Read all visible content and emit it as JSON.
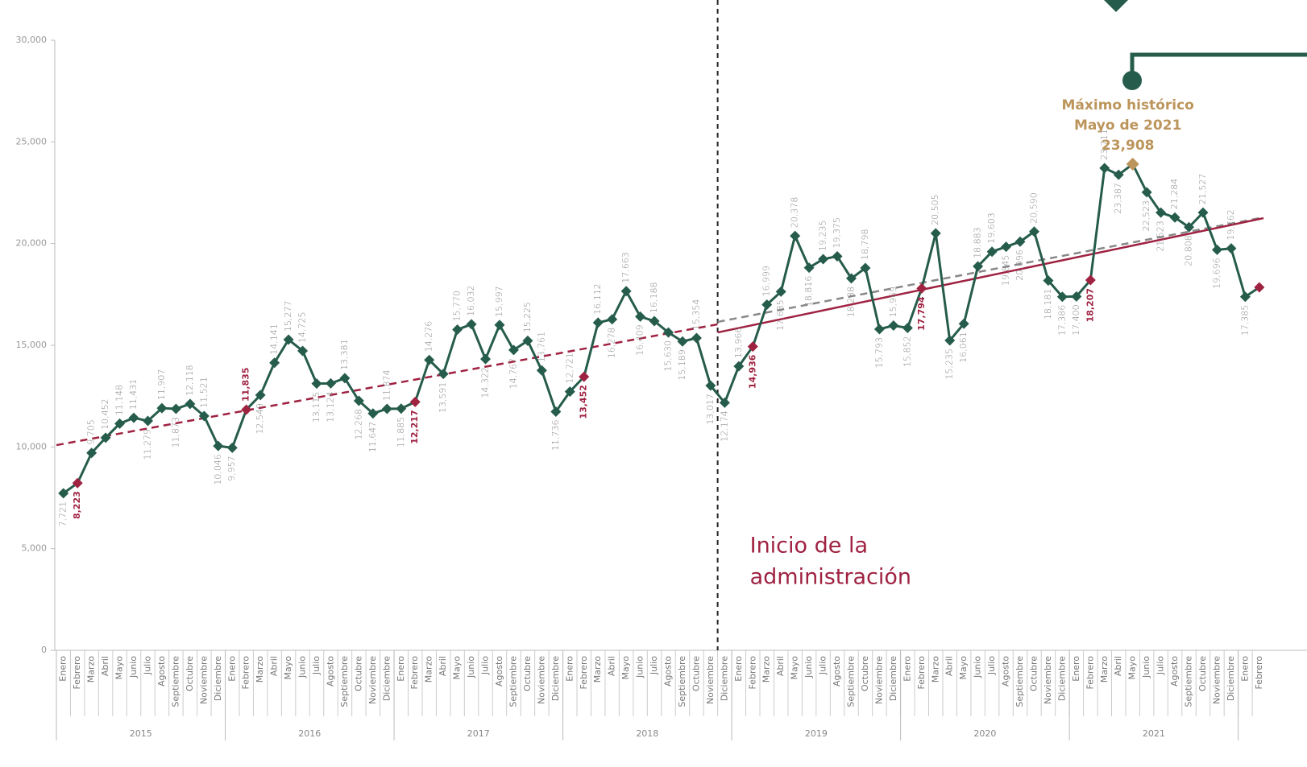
{
  "chart_data": {
    "type": "line",
    "categories": [
      "Enero",
      "Febrero",
      "Marzo",
      "Abril",
      "Mayo",
      "Junio",
      "Julio",
      "Agosto",
      "Septiembre",
      "Octubre",
      "Noviembre",
      "Diciembre",
      "Enero",
      "Febrero",
      "Marzo",
      "Abril",
      "Mayo",
      "Junio",
      "Julio",
      "Agosto",
      "Septiembre",
      "Octubre",
      "Noviembre",
      "Diciembre",
      "Enero",
      "Febrero",
      "Marzo",
      "Abril",
      "Mayo",
      "Junio",
      "Julio",
      "Agosto",
      "Septiembre",
      "Octubre",
      "Noviembre",
      "Diciembre",
      "Enero",
      "Febrero",
      "Marzo",
      "Abril",
      "Mayo",
      "Junio",
      "Julio",
      "Agosto",
      "Septiembre",
      "Octubre",
      "Noviembre",
      "Diciembre",
      "Enero",
      "Febrero",
      "Marzo",
      "Abril",
      "Mayo",
      "Junio",
      "Julio",
      "Agosto",
      "Septiembre",
      "Octubre",
      "Noviembre",
      "Diciembre",
      "Enero",
      "Febrero",
      "Marzo",
      "Abril",
      "Mayo",
      "Junio",
      "Julio",
      "Agosto",
      "Septiembre",
      "Octubre",
      "Noviembre",
      "Diciembre",
      "Enero",
      "Febrero",
      "Marzo",
      "Abril",
      "Mayo",
      "Junio",
      "Julio",
      "Agosto",
      "Septiembre",
      "Octubre",
      "Noviembre",
      "Diciembre",
      "Enero",
      "Febrero"
    ],
    "years": [
      "2015",
      "2016",
      "2017",
      "2018",
      "2019",
      "2020",
      "2021"
    ],
    "series": [
      {
        "color": "#265c4b",
        "values": [
          7721,
          8223,
          9705,
          10452,
          11148,
          11431,
          11279,
          11907,
          11873,
          12118,
          11521,
          10046,
          9957,
          11835,
          12549,
          14141,
          15277,
          14725,
          13115,
          13124,
          13381,
          12268,
          11647,
          11874,
          11885,
          12217,
          14276,
          13591,
          15770,
          16032,
          14322,
          15997,
          14767,
          15225,
          13761,
          11736,
          12721,
          13452,
          16112,
          16278,
          17663,
          16409,
          16188,
          15630,
          15189,
          15354,
          13017,
          12174,
          13966,
          14936,
          16999,
          17635,
          20378,
          18816,
          19235,
          19375,
          18288,
          18798,
          15793,
          15969,
          15852,
          17794,
          20505,
          15235,
          16061,
          18883,
          19603,
          19845,
          20096,
          20590,
          18181,
          17386,
          17400,
          18207,
          23711,
          23387,
          23908,
          22523,
          21523,
          21284,
          20808,
          21527,
          19696,
          19762,
          17385,
          17850
        ],
        "value_labels": [
          "7,721",
          "8,223",
          "9,705",
          "10,452",
          "11,148",
          "11,431",
          "11,279",
          "11,907",
          "11,873",
          "12,118",
          "11,521",
          "10,046",
          "9,957",
          "11,835",
          "12,549",
          "14,141",
          "15,277",
          "14,725",
          "13,115",
          "13,124",
          "13,381",
          "12,268",
          "11,647",
          "11,874",
          "11,885",
          "12,217",
          "14,276",
          "13,591",
          "15,770",
          "16,032",
          "14,322",
          "15,997",
          "14,767",
          "15,225",
          "13,761",
          "11,736",
          "12,721",
          "13,452",
          "16,112",
          "16,278",
          "17,663",
          "16,409",
          "16,188",
          "15,630",
          "15,189",
          "15,354",
          "13,017",
          "12,174",
          "13,966",
          "14,936",
          "16,999",
          "17,635",
          "20,378",
          "18,816",
          "19,235",
          "19,375",
          "18,288",
          "18,798",
          "15,793",
          "15,969",
          "15,852",
          "17,794",
          "20,505",
          "15,235",
          "16,061",
          "18,883",
          "19,603",
          "19,845",
          "20,096",
          "20,590",
          "18,181",
          "17,386",
          "17,400",
          "18,207",
          "23,711",
          "23,387",
          "23,908",
          "22,523",
          "21,523",
          "21,284",
          "20,808",
          "21,527",
          "19,696",
          "19,762",
          "17,385",
          null
        ]
      }
    ],
    "highlight": {
      "color": "#9f2241",
      "indices": [
        1,
        13,
        25,
        37,
        49,
        61,
        73,
        85
      ]
    },
    "peak": {
      "index": 76,
      "color": "#bc955c",
      "lines": [
        "Máximo histórico",
        "Mayo de 2021"
      ]
    },
    "trend_lines": [
      {
        "color": "#9f2241",
        "dashed": true,
        "start": [
          -0.5,
          10090
        ],
        "end": [
          46.5,
          16030
        ]
      },
      {
        "color": "#888888",
        "dashed": true,
        "start": [
          46.5,
          16150
        ],
        "end": [
          85.3,
          21290
        ]
      },
      {
        "color": "#9f2241",
        "dashed": false,
        "start": [
          46.5,
          15630
        ],
        "end": [
          85.3,
          21250
        ]
      }
    ],
    "administration": {
      "x": 46.5,
      "lines": [
        "Inicio de la",
        "administración"
      ]
    },
    "ylim": [
      0,
      30000
    ],
    "yticks": [
      0,
      {
        "value": 5000,
        "label": "5,000"
      },
      {
        "value": 10000,
        "label": "10,000"
      },
      {
        "value": 15000,
        "label": "15,000"
      },
      {
        "value": 20000,
        "label": "20,000"
      },
      {
        "value": 25000,
        "label": "25,000"
      },
      {
        "value": 30000,
        "label": "30,000"
      }
    ]
  }
}
